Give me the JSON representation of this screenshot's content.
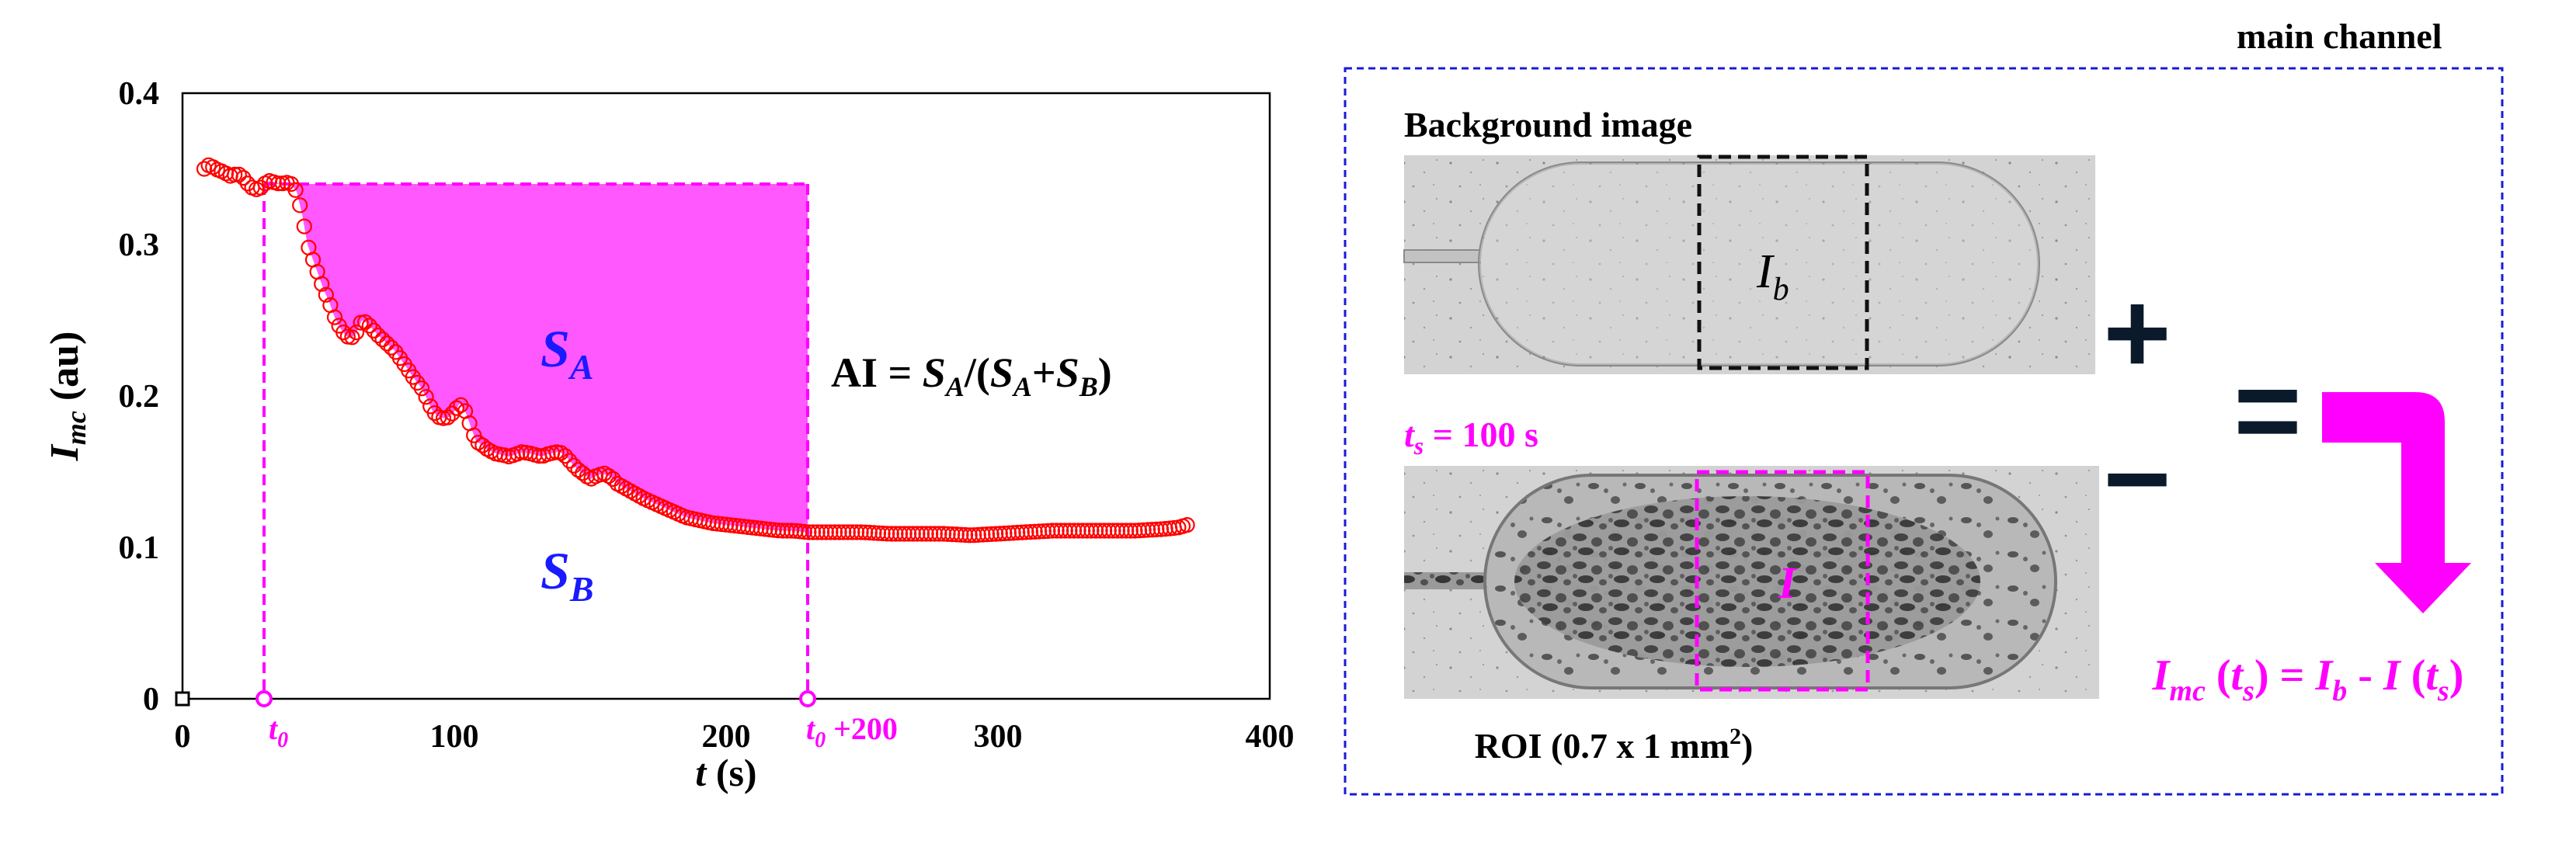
{
  "chart_data": {
    "type": "scatter",
    "title": "",
    "xlabel": {
      "main": "t",
      "unit": " (s)"
    },
    "ylabel": {
      "main": "I",
      "sub": "mc",
      "unit": " (au)"
    },
    "xlim": [
      0,
      400
    ],
    "ylim": [
      0,
      0.4
    ],
    "xticks": [
      0,
      100,
      200,
      300,
      400
    ],
    "yticks": [
      0,
      0.1,
      0.2,
      0.3,
      0.4
    ],
    "xtick_labels": [
      "0",
      "100",
      "200",
      "300",
      "400"
    ],
    "ytick_labels": [
      "0",
      "0.1",
      "0.2",
      "0.3",
      "0.4"
    ],
    "series": [
      {
        "name": "I_mc",
        "color": "#ff0000",
        "x": [
          8,
          10,
          12,
          15,
          18,
          20,
          22,
          25,
          28,
          30,
          32,
          34,
          36,
          38,
          40,
          42,
          44,
          46,
          48,
          50,
          52,
          54,
          56,
          58,
          60,
          62,
          64,
          66,
          68,
          70,
          72,
          75,
          78,
          80,
          82,
          85,
          88,
          90,
          92,
          95,
          98,
          100,
          102,
          104,
          106,
          108,
          110,
          112,
          115,
          118,
          120,
          122,
          125,
          128,
          130,
          132,
          135,
          138,
          140,
          142,
          145,
          148,
          150,
          152,
          155,
          158,
          160,
          165,
          170,
          175,
          180,
          185,
          190,
          195,
          200,
          205,
          210,
          215,
          220,
          225,
          230,
          240,
          250,
          260,
          270,
          280,
          290,
          300,
          310,
          320,
          330,
          340,
          350,
          360,
          366,
          370
        ],
        "y": [
          0.35,
          0.353,
          0.35,
          0.348,
          0.345,
          0.347,
          0.345,
          0.338,
          0.336,
          0.34,
          0.342,
          0.341,
          0.34,
          0.341,
          0.34,
          0.335,
          0.32,
          0.3,
          0.29,
          0.28,
          0.27,
          0.262,
          0.252,
          0.245,
          0.24,
          0.238,
          0.242,
          0.25,
          0.248,
          0.244,
          0.24,
          0.235,
          0.23,
          0.225,
          0.22,
          0.212,
          0.205,
          0.198,
          0.19,
          0.185,
          0.186,
          0.19,
          0.195,
          0.19,
          0.18,
          0.17,
          0.168,
          0.165,
          0.162,
          0.161,
          0.16,
          0.161,
          0.163,
          0.162,
          0.161,
          0.16,
          0.162,
          0.163,
          0.162,
          0.158,
          0.152,
          0.148,
          0.145,
          0.147,
          0.149,
          0.146,
          0.142,
          0.137,
          0.132,
          0.128,
          0.124,
          0.12,
          0.118,
          0.116,
          0.115,
          0.114,
          0.113,
          0.112,
          0.111,
          0.111,
          0.11,
          0.11,
          0.11,
          0.109,
          0.109,
          0.109,
          0.108,
          0.109,
          0.11,
          0.111,
          0.111,
          0.111,
          0.111,
          0.112,
          0.113,
          0.115
        ]
      }
    ],
    "shaded_region": {
      "name": "S_A",
      "t_start": 30,
      "t_end": 230,
      "top": 0.34,
      "color": "#ff33ff"
    },
    "annotations": {
      "sa": {
        "main": "S",
        "sub": "A"
      },
      "sb": {
        "main": "S",
        "sub": "B"
      },
      "ai": {
        "a": "AI = ",
        "b": "S",
        "c": "A",
        "d": "/(",
        "e": "S",
        "f": "A",
        "g": "+",
        "h": "S",
        "i": "B",
        "j": ")"
      },
      "t0": {
        "main": "t",
        "sub": "0"
      },
      "t200": {
        "main": "t",
        "sub": "0",
        "suffix": " +200"
      }
    },
    "colors": {
      "accent": "#ff00ff",
      "label_blue": "#1a1aff",
      "data": "#ff0000"
    }
  },
  "right_panel": {
    "title": "main channel",
    "bg_label": "Background image",
    "ib": {
      "main": "I",
      "sub": "b"
    },
    "ts": {
      "main": "t",
      "sub": "s",
      "rest": " = 100 s"
    },
    "i_label": "I",
    "plus": "+",
    "minus": "−",
    "equals": "=",
    "roi": {
      "pre": "ROI (0.7 x 1 mm",
      "sup": "2",
      "post": ")"
    },
    "formula": {
      "a": "I",
      "b": "mc",
      "c": " (",
      "d": "t",
      "e": "s",
      "f": ") = ",
      "g": "I",
      "h": "b",
      "i": " - ",
      "j": "I",
      "k": " (",
      "l": "t",
      "m": "s",
      "n": ")"
    },
    "colors": {
      "frame": "#1a1ad9",
      "accent": "#ff00ff",
      "op": "#0b1a2b"
    }
  }
}
